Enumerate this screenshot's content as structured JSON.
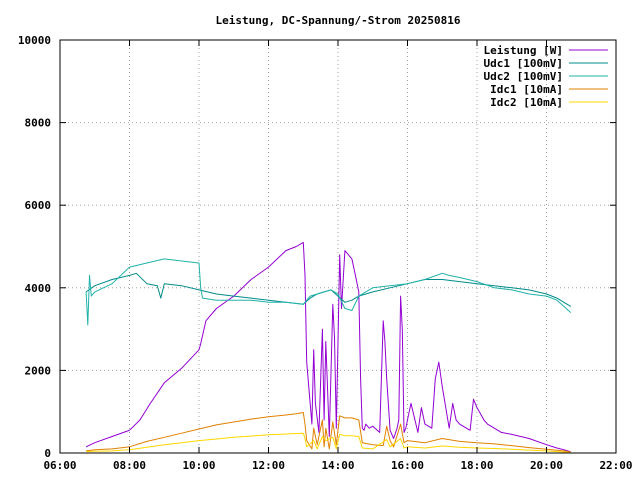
{
  "chart_data": {
    "type": "line",
    "title": "Leistung, DC-Spannung/-Strom 20250816",
    "xlabel": "",
    "ylabel": "",
    "xlim": [
      6,
      22
    ],
    "ylim": [
      0,
      10000
    ],
    "xticks": [
      {
        "v": 6,
        "label": "06:00"
      },
      {
        "v": 8,
        "label": "08:00"
      },
      {
        "v": 10,
        "label": "10:00"
      },
      {
        "v": 12,
        "label": "12:00"
      },
      {
        "v": 14,
        "label": "14:00"
      },
      {
        "v": 16,
        "label": "16:00"
      },
      {
        "v": 18,
        "label": "18:00"
      },
      {
        "v": 20,
        "label": "20:00"
      },
      {
        "v": 22,
        "label": "22:00"
      }
    ],
    "yticks": [
      {
        "v": 0,
        "label": "0"
      },
      {
        "v": 2000,
        "label": "2000"
      },
      {
        "v": 4000,
        "label": "4000"
      },
      {
        "v": 6000,
        "label": "6000"
      },
      {
        "v": 8000,
        "label": "8000"
      },
      {
        "v": 10000,
        "label": "10000"
      }
    ],
    "grid": true,
    "legend_position": "top-right",
    "series": [
      {
        "name": "Leistung [W]",
        "color": "#9400d3",
        "x": [
          6.75,
          7.0,
          7.5,
          8.0,
          8.3,
          8.6,
          9.0,
          9.5,
          10.0,
          10.05,
          10.2,
          10.5,
          11.0,
          11.5,
          12.0,
          12.5,
          12.8,
          13.0,
          13.05,
          13.1,
          13.25,
          13.3,
          13.35,
          13.45,
          13.55,
          13.6,
          13.65,
          13.75,
          13.85,
          13.9,
          13.95,
          14.05,
          14.1,
          14.2,
          14.3,
          14.4,
          14.5,
          14.6,
          14.65,
          14.7,
          14.75,
          14.8,
          14.9,
          15.0,
          15.2,
          15.3,
          15.35,
          15.4,
          15.5,
          15.6,
          15.7,
          15.75,
          15.8,
          15.85,
          15.9,
          15.95,
          16.05,
          16.1,
          16.3,
          16.4,
          16.5,
          16.7,
          16.8,
          16.9,
          17.0,
          17.2,
          17.3,
          17.4,
          17.5,
          17.6,
          17.8,
          17.9,
          18.0,
          18.1,
          18.2,
          18.3,
          18.5,
          18.7,
          19.0,
          19.5,
          20.0,
          20.3,
          20.5,
          20.7
        ],
        "y": [
          150,
          250,
          400,
          550,
          800,
          1200,
          1700,
          2050,
          2500,
          2650,
          3200,
          3500,
          3800,
          4200,
          4500,
          4900,
          5000,
          5100,
          4300,
          2200,
          700,
          2500,
          1200,
          500,
          3000,
          800,
          2700,
          400,
          3600,
          2800,
          600,
          4800,
          3500,
          4900,
          4800,
          4700,
          4300,
          3900,
          1800,
          600,
          550,
          700,
          600,
          650,
          500,
          3200,
          2700,
          1800,
          550,
          350,
          600,
          800,
          3800,
          3000,
          500,
          600,
          1000,
          1200,
          500,
          1100,
          700,
          600,
          1800,
          2200,
          1600,
          600,
          1200,
          800,
          700,
          650,
          550,
          1300,
          1100,
          950,
          800,
          700,
          600,
          500,
          450,
          350,
          200,
          120,
          80,
          30
        ]
      },
      {
        "name": "Udc1 [100mV]",
        "color": "#008b8b",
        "x": [
          6.75,
          7.0,
          7.5,
          8.0,
          8.2,
          8.5,
          8.8,
          8.9,
          9.0,
          9.5,
          10.0,
          10.5,
          11.0,
          11.5,
          12.0,
          12.5,
          13.0,
          13.2,
          13.4,
          13.6,
          13.8,
          14.0,
          14.2,
          14.4,
          14.6,
          14.8,
          15.0,
          15.5,
          16.0,
          16.5,
          17.0,
          17.5,
          18.0,
          18.5,
          19.0,
          19.5,
          20.0,
          20.3,
          20.5,
          20.7
        ],
        "y": [
          3900,
          4050,
          4200,
          4300,
          4350,
          4100,
          4050,
          3750,
          4100,
          4050,
          3950,
          3850,
          3800,
          3750,
          3700,
          3650,
          3600,
          3750,
          3850,
          3900,
          3950,
          3800,
          3650,
          3700,
          3800,
          3850,
          3900,
          4000,
          4100,
          4200,
          4200,
          4150,
          4100,
          4050,
          4000,
          3950,
          3850,
          3750,
          3650,
          3550
        ]
      },
      {
        "name": "Udc2 [100mV]",
        "color": "#20b2aa",
        "x": [
          6.75,
          6.8,
          6.85,
          6.9,
          7.0,
          7.5,
          8.0,
          8.5,
          9.0,
          9.5,
          10.0,
          10.05,
          10.1,
          10.5,
          11.0,
          11.5,
          12.0,
          12.5,
          13.0,
          13.2,
          13.4,
          13.6,
          13.8,
          14.0,
          14.2,
          14.4,
          14.6,
          14.8,
          15.0,
          15.5,
          16.0,
          16.5,
          17.0,
          17.2,
          17.5,
          18.0,
          18.5,
          19.0,
          19.5,
          20.0,
          20.3,
          20.5,
          20.7
        ],
        "y": [
          3900,
          3100,
          4300,
          3800,
          3900,
          4100,
          4500,
          4600,
          4700,
          4650,
          4600,
          4000,
          3750,
          3700,
          3700,
          3700,
          3650,
          3650,
          3600,
          3800,
          3850,
          3900,
          3950,
          3850,
          3500,
          3450,
          3800,
          3900,
          4000,
          4050,
          4100,
          4200,
          4350,
          4300,
          4250,
          4150,
          4000,
          3950,
          3850,
          3800,
          3700,
          3550,
          3400
        ]
      },
      {
        "name": "Idc1 [10mA]",
        "color": "#e08000",
        "x": [
          6.75,
          7.0,
          7.5,
          8.0,
          8.5,
          9.0,
          9.5,
          10.0,
          10.5,
          11.0,
          11.5,
          12.0,
          12.5,
          12.8,
          13.0,
          13.05,
          13.1,
          13.25,
          13.3,
          13.4,
          13.55,
          13.6,
          13.65,
          13.75,
          13.85,
          13.95,
          14.05,
          14.2,
          14.4,
          14.6,
          14.7,
          15.0,
          15.3,
          15.4,
          15.5,
          15.6,
          15.8,
          15.9,
          16.0,
          16.5,
          17.0,
          17.5,
          18.0,
          18.5,
          19.0,
          19.5,
          20.0,
          20.5,
          20.7
        ],
        "y": [
          50,
          80,
          100,
          150,
          280,
          380,
          480,
          580,
          680,
          750,
          820,
          880,
          920,
          950,
          980,
          700,
          300,
          100,
          600,
          200,
          800,
          150,
          600,
          100,
          750,
          200,
          900,
          850,
          850,
          800,
          250,
          200,
          180,
          650,
          300,
          150,
          700,
          250,
          300,
          250,
          350,
          280,
          250,
          220,
          180,
          130,
          90,
          50,
          20
        ]
      },
      {
        "name": "Idc2 [10mA]",
        "color": "#ffd700",
        "x": [
          6.75,
          7.0,
          7.5,
          8.0,
          8.5,
          9.0,
          9.5,
          10.0,
          10.5,
          11.0,
          11.5,
          12.0,
          12.5,
          13.0,
          13.05,
          13.1,
          13.3,
          13.4,
          13.55,
          13.65,
          13.85,
          13.95,
          14.05,
          14.2,
          14.4,
          14.6,
          14.7,
          15.0,
          15.4,
          15.5,
          15.8,
          15.9,
          16.0,
          16.5,
          17.0,
          17.5,
          18.0,
          18.5,
          19.0,
          19.5,
          20.0,
          20.5,
          20.7
        ],
        "y": [
          30,
          40,
          50,
          80,
          140,
          200,
          250,
          300,
          340,
          380,
          410,
          440,
          460,
          480,
          350,
          150,
          300,
          100,
          400,
          300,
          380,
          100,
          450,
          420,
          420,
          400,
          120,
          100,
          330,
          150,
          350,
          120,
          150,
          120,
          170,
          140,
          120,
          110,
          90,
          70,
          50,
          25,
          10
        ]
      }
    ]
  }
}
